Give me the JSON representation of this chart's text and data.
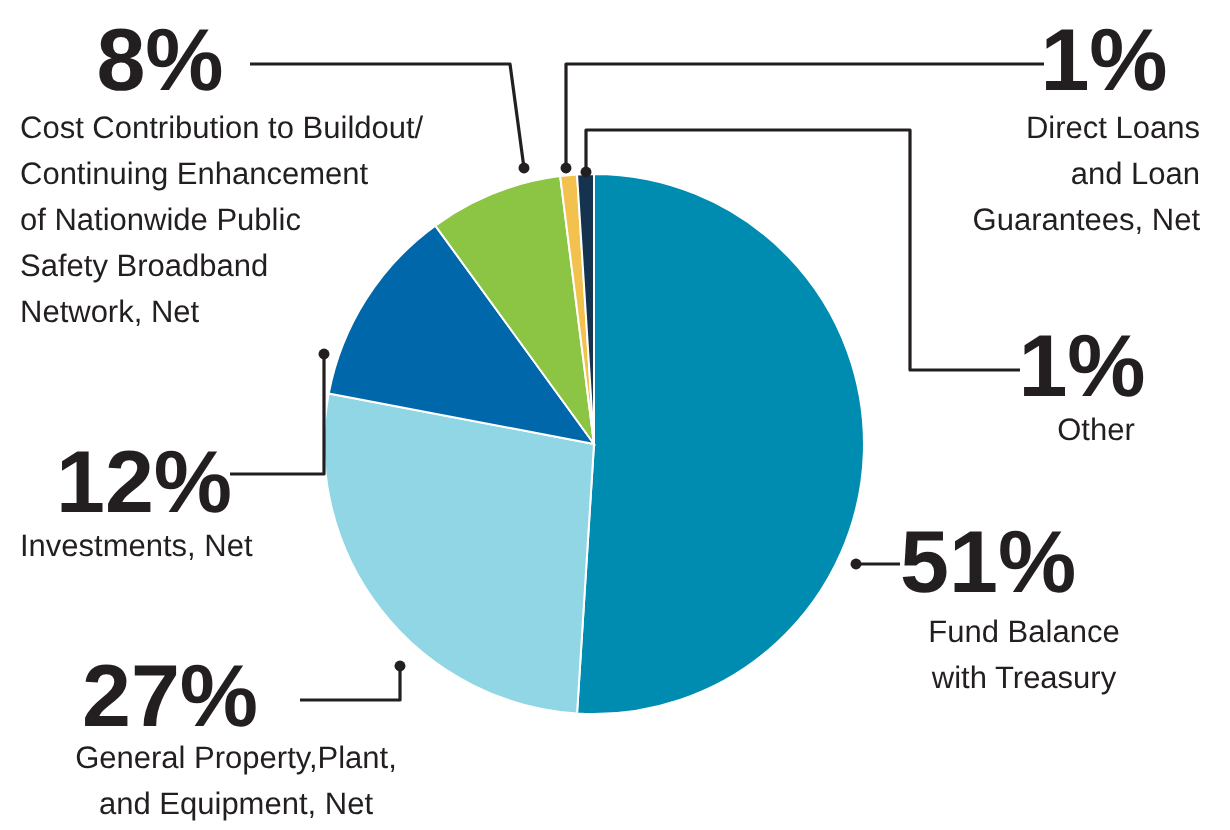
{
  "chart_data": {
    "type": "pie",
    "categories": [
      "Fund Balance\nwith Treasury",
      "General Property,Plant,\nand Equipment, Net",
      "Investments, Net",
      "Cost Contribution to Buildout/\nContinuing Enhancement\nof Nationwide Public\nSafety Broadband\nNetwork, Net",
      "Direct Loans\nand Loan\nGuarantees, Net",
      "Other"
    ],
    "values": [
      51,
      27,
      12,
      8,
      1,
      1
    ],
    "colors": [
      "#008cb0",
      "#91d6e4",
      "#0068aa",
      "#8cc443",
      "#f2c14e",
      "#15334f"
    ],
    "value_labels": [
      "51%",
      "27%",
      "12%",
      "8%",
      "1%",
      "1%"
    ]
  }
}
